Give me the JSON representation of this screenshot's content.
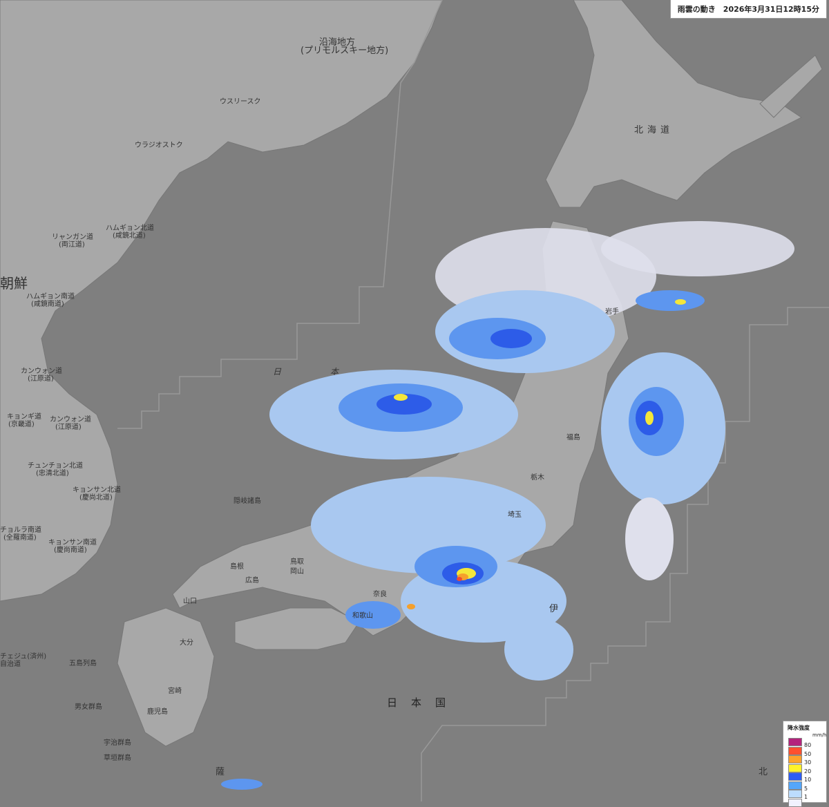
{
  "header": {
    "title": "雨雲の動き　2026年3月31日12時15分"
  },
  "legend": {
    "title": "降水強度",
    "unit": "mm/h",
    "levels": [
      {
        "value": "80",
        "color": "#b4237d"
      },
      {
        "value": "50",
        "color": "#ff4f2f"
      },
      {
        "value": "30",
        "color": "#ffa12b"
      },
      {
        "value": "20",
        "color": "#fff22b"
      },
      {
        "value": "10",
        "color": "#2c5cf5"
      },
      {
        "value": "5",
        "color": "#54a6fb"
      },
      {
        "value": "1",
        "color": "#bcdcfe"
      },
      {
        "value": "",
        "color": "#f1f1fe"
      }
    ]
  },
  "colors": {
    "sea": "#7f7f7f",
    "land": "#a9a9a9",
    "rain_light": "#dfe0ec",
    "rain_1": "#a9c8f0",
    "rain_5": "#5d96ef",
    "rain_10": "#2d5ce8",
    "rain_20": "#f4e63a",
    "rain_30": "#f5a02c",
    "rain_50": "#ef4a32"
  },
  "map_labels": {
    "primorsky": "沿海地方",
    "primorsky_sub": "(プリモルスキー地方)",
    "hokkaido": "北海道",
    "korea": "朝鮮",
    "oki": "隠岐諸島",
    "japan": "日本国",
    "sea_of_japan_1": "日",
    "sea_of_japan_2": "本",
    "hamgyong_n": "ハムギョン北道",
    "hamgyong_n_sub": "(咸鏡北道)",
    "hamgyong_s": "ハムギョン南道",
    "hamgyong_s_sub": "(咸鏡南道)",
    "ryanggang": "リャンガン道",
    "ryanggang_sub": "(両江道)",
    "gangwon_n": "カンウォン道",
    "gangwon_n_sub": "(江原道)",
    "gangwon_s": "カンウォン道",
    "gangwon_s_sub": "(江原道)",
    "gyeonggi": "キョンギ道",
    "gyeonggi_sub": "(京畿道)",
    "chungbuk": "チュンチョン北道",
    "chungbuk_sub": "(忠清北道)",
    "gyeongbuk": "キョンサン北道",
    "gyeongbuk_sub": "(慶尚北道)",
    "gyeongnam": "キョンサン南道",
    "gyeongnam_sub": "(慶尚南道)",
    "jeonnam": "チョルラ南道",
    "jeonnam_sub": "(全羅南道)",
    "jeju": "チェジュ(済州)",
    "jeju_sub": "自治道",
    "vladivostok": "ウラジオストク",
    "ussuriysk": "ウスリースク",
    "goto": "五島列島",
    "danjo": "男女群島",
    "uji": "宇治群島",
    "kusagaki": "草垣群島",
    "oita": "大分",
    "miyazaki": "宮崎",
    "kagoshima": "鹿児島",
    "yamaguchi": "山口",
    "tottori": "鳥取",
    "shimane": "島根",
    "okayama": "岡山",
    "hiroshima": "広島",
    "nara": "奈良",
    "wakayama": "和歌山",
    "fukushima": "福島",
    "tochigi": "栃木",
    "saitama": "埼玉",
    "iwate": "岩手",
    "izu": "伊",
    "north": "北",
    "nansei": "薩"
  }
}
